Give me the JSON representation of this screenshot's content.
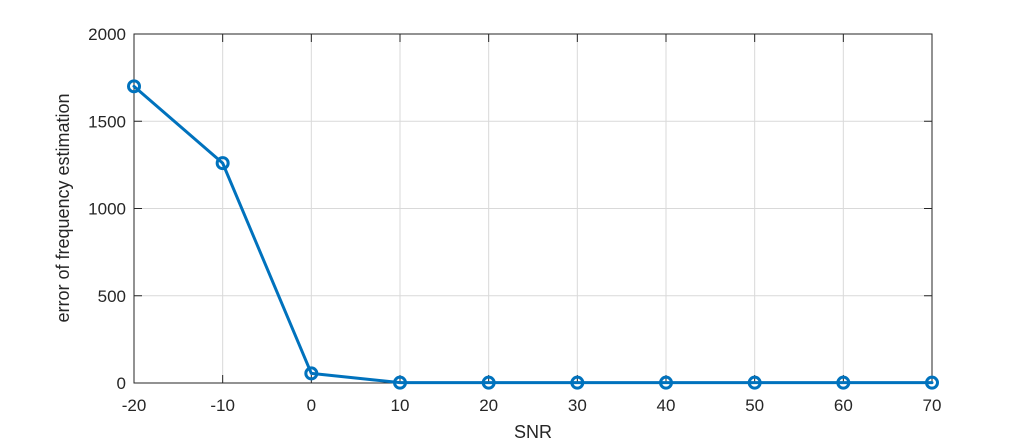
{
  "chart_data": {
    "type": "line",
    "title": "",
    "xlabel": "SNR",
    "ylabel": "error of frequency estimation",
    "x": [
      -20,
      -10,
      0,
      10,
      20,
      30,
      40,
      50,
      60,
      70
    ],
    "xticks": [
      -20,
      -10,
      0,
      10,
      20,
      30,
      40,
      50,
      60,
      70
    ],
    "yticks": [
      0,
      500,
      1000,
      1500,
      2000
    ],
    "xlim": [
      -20,
      70
    ],
    "ylim": [
      0,
      2000
    ],
    "grid": true,
    "series": [
      {
        "values": [
          1700,
          1260,
          55,
          2,
          2,
          2,
          2,
          2,
          2,
          2
        ],
        "color": "#0072BD",
        "marker": "circle"
      }
    ]
  }
}
